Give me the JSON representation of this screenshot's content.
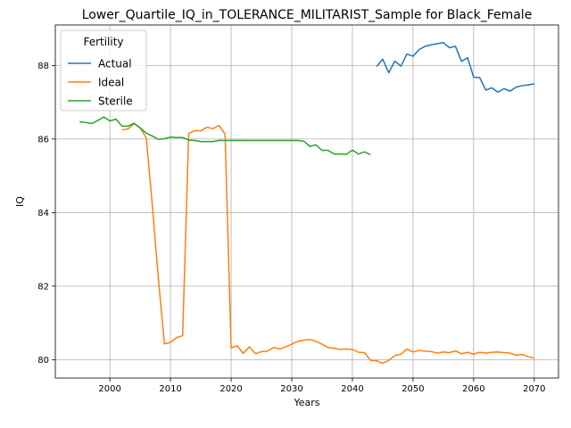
{
  "chart_data": {
    "type": "line",
    "title": "Lower_Quartile_IQ_in_TOLERANCE_MILITARIST_Sample for Black_Female",
    "xlabel": "Years",
    "ylabel": "IQ",
    "xlim": [
      1991,
      2074
    ],
    "ylim": [
      79.5,
      89.1
    ],
    "x_ticks": [
      2000,
      2010,
      2020,
      2030,
      2040,
      2050,
      2060,
      2070
    ],
    "y_ticks": [
      80,
      82,
      84,
      86,
      88
    ],
    "grid": true,
    "legend": {
      "title": "Fertility",
      "position": "top-left"
    },
    "series": [
      {
        "name": "Actual",
        "color": "#1f77b4",
        "points": [
          [
            2044,
            87.97
          ],
          [
            2045,
            88.17
          ],
          [
            2046,
            87.8
          ],
          [
            2047,
            88.12
          ],
          [
            2048,
            87.98
          ],
          [
            2049,
            88.31
          ],
          [
            2050,
            88.25
          ],
          [
            2051,
            88.43
          ],
          [
            2052,
            88.52
          ],
          [
            2053,
            88.56
          ],
          [
            2054,
            88.59
          ],
          [
            2055,
            88.62
          ],
          [
            2056,
            88.48
          ],
          [
            2057,
            88.52
          ],
          [
            2058,
            88.11
          ],
          [
            2059,
            88.21
          ],
          [
            2060,
            87.68
          ],
          [
            2061,
            87.67
          ],
          [
            2062,
            87.33
          ],
          [
            2063,
            87.39
          ],
          [
            2064,
            87.27
          ],
          [
            2065,
            87.37
          ],
          [
            2066,
            87.3
          ],
          [
            2067,
            87.41
          ],
          [
            2068,
            87.45
          ],
          [
            2069,
            87.47
          ],
          [
            2070,
            87.5
          ]
        ]
      },
      {
        "name": "Ideal",
        "color": "#ff7f0e",
        "points": [
          [
            2002,
            86.25
          ],
          [
            2003,
            86.27
          ],
          [
            2004,
            86.42
          ],
          [
            2005,
            86.3
          ],
          [
            2006,
            86.03
          ],
          [
            2007,
            84.2
          ],
          [
            2008,
            82.2
          ],
          [
            2009,
            80.43
          ],
          [
            2010,
            80.47
          ],
          [
            2011,
            80.6
          ],
          [
            2012,
            80.65
          ],
          [
            2013,
            86.15
          ],
          [
            2014,
            86.23
          ],
          [
            2015,
            86.22
          ],
          [
            2016,
            86.32
          ],
          [
            2017,
            86.28
          ],
          [
            2018,
            86.37
          ],
          [
            2019,
            86.13
          ],
          [
            2020,
            80.32
          ],
          [
            2021,
            80.38
          ],
          [
            2022,
            80.17
          ],
          [
            2023,
            80.35
          ],
          [
            2024,
            80.16
          ],
          [
            2025,
            80.22
          ],
          [
            2026,
            80.23
          ],
          [
            2027,
            80.33
          ],
          [
            2028,
            80.29
          ],
          [
            2029,
            80.35
          ],
          [
            2030,
            80.42
          ],
          [
            2031,
            80.5
          ],
          [
            2032,
            80.53
          ],
          [
            2033,
            80.55
          ],
          [
            2034,
            80.5
          ],
          [
            2035,
            80.42
          ],
          [
            2036,
            80.33
          ],
          [
            2037,
            80.31
          ],
          [
            2038,
            80.28
          ],
          [
            2039,
            80.29
          ],
          [
            2040,
            80.28
          ],
          [
            2041,
            80.2
          ],
          [
            2042,
            80.19
          ],
          [
            2043,
            79.98
          ],
          [
            2044,
            79.97
          ],
          [
            2045,
            79.9
          ],
          [
            2046,
            79.98
          ],
          [
            2047,
            80.11
          ],
          [
            2048,
            80.15
          ],
          [
            2049,
            80.29
          ],
          [
            2050,
            80.21
          ],
          [
            2051,
            80.25
          ],
          [
            2052,
            80.23
          ],
          [
            2053,
            80.22
          ],
          [
            2054,
            80.18
          ],
          [
            2055,
            80.21
          ],
          [
            2056,
            80.19
          ],
          [
            2057,
            80.24
          ],
          [
            2058,
            80.16
          ],
          [
            2059,
            80.2
          ],
          [
            2060,
            80.15
          ],
          [
            2061,
            80.2
          ],
          [
            2062,
            80.18
          ],
          [
            2063,
            80.2
          ],
          [
            2064,
            80.21
          ],
          [
            2065,
            80.19
          ],
          [
            2066,
            80.18
          ],
          [
            2067,
            80.12
          ],
          [
            2068,
            80.14
          ],
          [
            2069,
            80.08
          ],
          [
            2070,
            80.04
          ]
        ]
      },
      {
        "name": "Sterile",
        "color": "#2ca02c",
        "points": [
          [
            1995,
            86.47
          ],
          [
            1996,
            86.45
          ],
          [
            1997,
            86.42
          ],
          [
            1998,
            86.5
          ],
          [
            1999,
            86.6
          ],
          [
            2000,
            86.49
          ],
          [
            2001,
            86.54
          ],
          [
            2002,
            86.35
          ],
          [
            2003,
            86.35
          ],
          [
            2004,
            86.43
          ],
          [
            2005,
            86.3
          ],
          [
            2006,
            86.16
          ],
          [
            2007,
            86.08
          ],
          [
            2008,
            85.99
          ],
          [
            2009,
            86.01
          ],
          [
            2010,
            86.05
          ],
          [
            2011,
            86.04
          ],
          [
            2012,
            86.04
          ],
          [
            2013,
            85.97
          ],
          [
            2014,
            85.96
          ],
          [
            2015,
            85.93
          ],
          [
            2016,
            85.93
          ],
          [
            2017,
            85.93
          ],
          [
            2018,
            85.96
          ],
          [
            2019,
            85.96
          ],
          [
            2020,
            85.96
          ],
          [
            2021,
            85.96
          ],
          [
            2022,
            85.96
          ],
          [
            2023,
            85.96
          ],
          [
            2024,
            85.96
          ],
          [
            2025,
            85.96
          ],
          [
            2026,
            85.96
          ],
          [
            2027,
            85.96
          ],
          [
            2028,
            85.96
          ],
          [
            2029,
            85.96
          ],
          [
            2030,
            85.96
          ],
          [
            2031,
            85.96
          ],
          [
            2032,
            85.94
          ],
          [
            2033,
            85.8
          ],
          [
            2034,
            85.84
          ],
          [
            2035,
            85.69
          ],
          [
            2036,
            85.69
          ],
          [
            2037,
            85.59
          ],
          [
            2038,
            85.59
          ],
          [
            2039,
            85.58
          ],
          [
            2040,
            85.7
          ],
          [
            2041,
            85.59
          ],
          [
            2042,
            85.65
          ],
          [
            2043,
            85.57
          ]
        ]
      }
    ]
  }
}
